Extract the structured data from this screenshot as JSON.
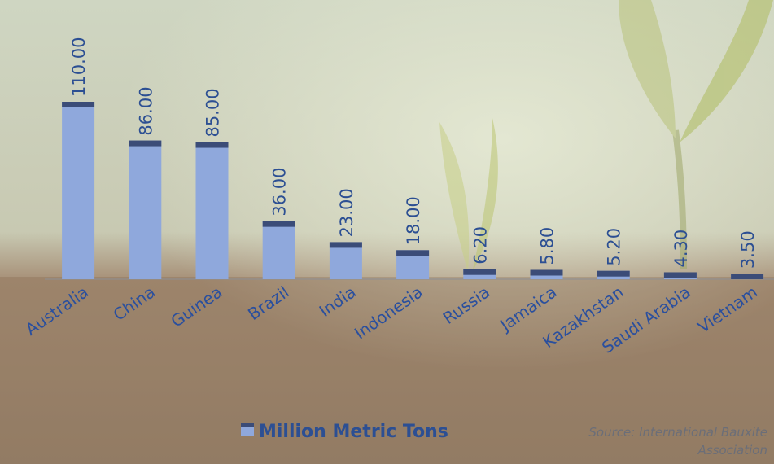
{
  "chart_data": {
    "type": "bar",
    "categories": [
      "Australia",
      "China",
      "Guinea",
      "Brazil",
      "India",
      "Indonesia",
      "Russia",
      "Jamaica",
      "Kazakhstan",
      "Saudi Arabia",
      "Vietnam"
    ],
    "series": [
      {
        "name": "Million Metric Tons",
        "color": "#8fa8dc",
        "values": [
          110,
          86,
          85,
          36,
          23,
          18,
          6.2,
          5.8,
          5.2,
          4.3,
          3.5
        ],
        "value_labels": [
          "110.00",
          "86.00",
          "85.00",
          "36.00",
          "23.00",
          "18.00",
          "6.20",
          "5.80",
          "5.20",
          "4.30",
          "3.50"
        ]
      }
    ],
    "ylim": [
      0,
      110
    ],
    "source": "Source: International Bauxite Association"
  }
}
